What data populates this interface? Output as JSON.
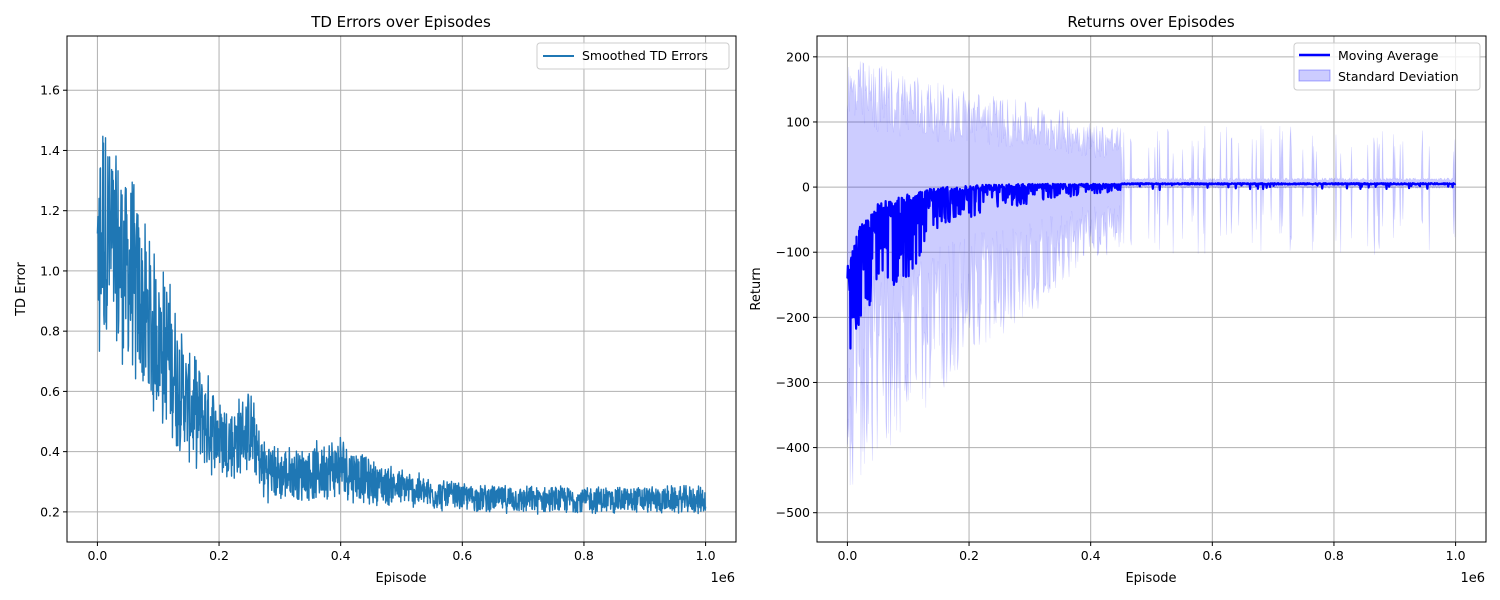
{
  "chart_data": [
    {
      "type": "line",
      "title": "TD Errors over Episodes",
      "xlabel": "Episode",
      "ylabel": "TD Error",
      "x_scale_label": "1e6",
      "xlim": [
        -0.05,
        1.05
      ],
      "ylim": [
        0.1,
        1.78
      ],
      "xticks": [
        0.0,
        0.2,
        0.4,
        0.6,
        0.8,
        1.0
      ],
      "xtick_labels": [
        "0.0",
        "0.2",
        "0.4",
        "0.6",
        "0.8",
        "1.0"
      ],
      "yticks": [
        0.2,
        0.4,
        0.6,
        0.8,
        1.0,
        1.2,
        1.4,
        1.6
      ],
      "ytick_labels": [
        "0.2",
        "0.4",
        "0.6",
        "0.8",
        "1.0",
        "1.2",
        "1.4",
        "1.6"
      ],
      "grid": true,
      "legend_position": "top-right",
      "series": [
        {
          "name": "Smoothed TD Errors",
          "color": "#1f77b4",
          "x": [
            0.0,
            0.01,
            0.02,
            0.03,
            0.05,
            0.07,
            0.09,
            0.11,
            0.13,
            0.15,
            0.18,
            0.2,
            0.22,
            0.25,
            0.27,
            0.3,
            0.35,
            0.4,
            0.45,
            0.5,
            0.55,
            0.6,
            0.7,
            0.8,
            0.9,
            1.0
          ],
          "mean": [
            1.05,
            1.15,
            1.1,
            1.05,
            1.0,
            0.9,
            0.8,
            0.75,
            0.65,
            0.55,
            0.5,
            0.45,
            0.42,
            0.48,
            0.35,
            0.32,
            0.33,
            0.35,
            0.3,
            0.28,
            0.26,
            0.25,
            0.24,
            0.24,
            0.24,
            0.24
          ],
          "amp": [
            0.4,
            0.45,
            0.45,
            0.4,
            0.4,
            0.35,
            0.3,
            0.3,
            0.25,
            0.2,
            0.18,
            0.15,
            0.15,
            0.15,
            0.12,
            0.1,
            0.1,
            0.12,
            0.08,
            0.07,
            0.06,
            0.05,
            0.05,
            0.05,
            0.05,
            0.05
          ]
        }
      ]
    },
    {
      "type": "area",
      "title": "Returns over Episodes",
      "xlabel": "Episode",
      "ylabel": "Return",
      "x_scale_label": "1e6",
      "xlim": [
        -0.05,
        1.05
      ],
      "ylim": [
        -545,
        232
      ],
      "xticks": [
        0.0,
        0.2,
        0.4,
        0.6,
        0.8,
        1.0
      ],
      "xtick_labels": [
        "0.0",
        "0.2",
        "0.4",
        "0.6",
        "0.8",
        "1.0"
      ],
      "yticks": [
        -500,
        -400,
        -300,
        -200,
        -100,
        0,
        100,
        200
      ],
      "ytick_labels": [
        "−500",
        "−400",
        "−300",
        "−200",
        "−100",
        "0",
        "100",
        "200"
      ],
      "grid": true,
      "legend_position": "top-right",
      "series": [
        {
          "name": "Moving Average",
          "color": "#0000ff",
          "x": [
            0.0,
            0.02,
            0.05,
            0.1,
            0.15,
            0.2,
            0.25,
            0.3,
            0.4,
            0.5,
            0.6,
            0.8,
            1.0
          ],
          "mean": [
            -120,
            -60,
            -25,
            -10,
            0,
            3,
            4,
            5,
            5,
            5,
            5,
            5,
            5
          ],
          "dip": [
            170,
            150,
            140,
            130,
            60,
            50,
            40,
            30,
            15,
            10,
            8,
            8,
            8
          ]
        },
        {
          "name": "Standard Deviation",
          "color": "#0000ff",
          "fill_opacity": 0.2,
          "x": [
            0.0,
            0.02,
            0.05,
            0.1,
            0.15,
            0.2,
            0.25,
            0.3,
            0.35,
            0.4,
            0.45,
            0.5,
            0.6,
            0.8,
            1.0
          ],
          "upper": [
            200,
            195,
            190,
            180,
            160,
            150,
            140,
            130,
            120,
            100,
            95,
            95,
            95,
            95,
            95
          ],
          "lower": [
            -510,
            -470,
            -420,
            -380,
            -320,
            -260,
            -230,
            -200,
            -150,
            -110,
            -105,
            -105,
            -105,
            -105,
            -105
          ]
        }
      ]
    }
  ]
}
